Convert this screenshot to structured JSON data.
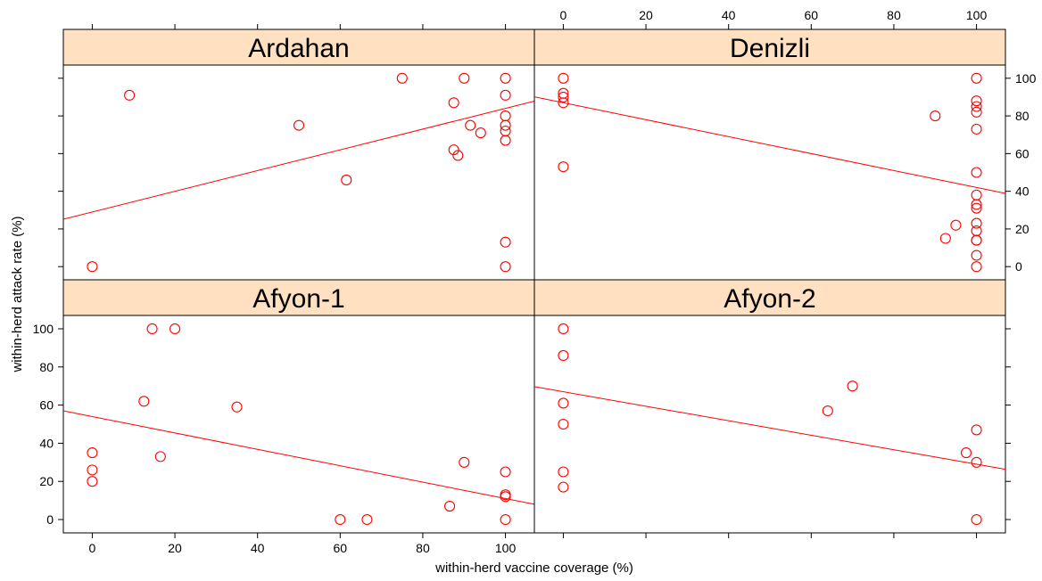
{
  "chart_data": {
    "type": "scatter",
    "subtype": "lattice-xyplot-with-regression-lines",
    "xlabel": "within-herd vaccine coverage (%)",
    "ylabel": "within-herd attack rate (%)",
    "xlim": [
      -7,
      107
    ],
    "ylim": [
      -7,
      107
    ],
    "xticks": [
      0,
      20,
      40,
      60,
      80,
      100
    ],
    "yticks": [
      0,
      20,
      40,
      60,
      80,
      100
    ],
    "grid": false,
    "strip_color": "#ffe0c0",
    "point_color": "#ff0000",
    "line_color": "#ff0000",
    "panels": [
      {
        "name": "Ardahan",
        "points": [
          [
            0,
            0
          ],
          [
            9,
            91
          ],
          [
            50,
            75
          ],
          [
            61.5,
            46
          ],
          [
            75,
            100
          ],
          [
            87.5,
            87
          ],
          [
            87.5,
            62
          ],
          [
            88.5,
            59
          ],
          [
            90,
            100
          ],
          [
            91.5,
            75
          ],
          [
            94,
            71
          ],
          [
            100,
            100
          ],
          [
            100,
            91
          ],
          [
            100,
            80
          ],
          [
            100,
            75
          ],
          [
            100,
            72
          ],
          [
            100,
            67
          ],
          [
            100,
            13
          ],
          [
            100,
            0
          ]
        ],
        "regression": {
          "intercept": 29,
          "slope": 0.55
        }
      },
      {
        "name": "Denizli",
        "points": [
          [
            0,
            100
          ],
          [
            0,
            92
          ],
          [
            0,
            90
          ],
          [
            0,
            87
          ],
          [
            0,
            53
          ],
          [
            90,
            80
          ],
          [
            92.5,
            15
          ],
          [
            95,
            22
          ],
          [
            100,
            100
          ],
          [
            100,
            88
          ],
          [
            100,
            85
          ],
          [
            100,
            82
          ],
          [
            100,
            73
          ],
          [
            100,
            50
          ],
          [
            100,
            38
          ],
          [
            100,
            33
          ],
          [
            100,
            31
          ],
          [
            100,
            23
          ],
          [
            100,
            19
          ],
          [
            100,
            14
          ],
          [
            100,
            14
          ],
          [
            100,
            6
          ],
          [
            100,
            0
          ]
        ],
        "regression": {
          "intercept": 87,
          "slope": -0.45
        }
      },
      {
        "name": "Afyon-1",
        "points": [
          [
            0,
            35
          ],
          [
            0,
            26
          ],
          [
            0,
            20
          ],
          [
            12.5,
            62
          ],
          [
            14.5,
            100
          ],
          [
            16.5,
            33
          ],
          [
            20,
            100
          ],
          [
            35,
            59
          ],
          [
            60,
            0
          ],
          [
            66.5,
            0
          ],
          [
            86.5,
            7
          ],
          [
            90,
            30
          ],
          [
            100,
            25
          ],
          [
            100,
            13
          ],
          [
            100,
            12
          ],
          [
            100,
            0
          ]
        ],
        "regression": {
          "intercept": 54,
          "slope": -0.43
        }
      },
      {
        "name": "Afyon-2",
        "points": [
          [
            0,
            100
          ],
          [
            0,
            86
          ],
          [
            0,
            61
          ],
          [
            0,
            50
          ],
          [
            0,
            25
          ],
          [
            0,
            17
          ],
          [
            64,
            57
          ],
          [
            70,
            70
          ],
          [
            97.5,
            35
          ],
          [
            100,
            47
          ],
          [
            100,
            30
          ],
          [
            100,
            0
          ]
        ],
        "regression": {
          "intercept": 67,
          "slope": -0.38
        }
      }
    ]
  }
}
